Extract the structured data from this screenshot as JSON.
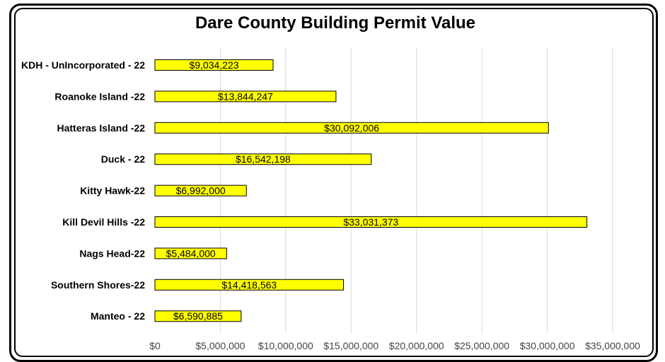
{
  "chart_data": {
    "type": "bar",
    "orientation": "horizontal",
    "title": "Dare County Building Permit Value",
    "categories": [
      "KDH - UnIncorporated - 22",
      "Roanoke Island -22",
      "Hatteras Island -22",
      "Duck - 22",
      "Kitty Hawk-22",
      "Kill Devil Hills -22",
      "Nags Head-22",
      "Southern Shores-22",
      "Manteo - 22"
    ],
    "values": [
      9034223,
      13844247,
      30092006,
      16542198,
      6992000,
      33031373,
      5484000,
      14418563,
      6590885
    ],
    "data_labels": [
      "$9,034,223",
      "$13,844,247",
      "$30,092,006",
      "$16,542,198",
      "$6,992,000",
      "$33,031,373",
      "$5,484,000",
      "$14,418,563",
      "$6,590,885"
    ],
    "xlim": [
      0,
      35000000
    ],
    "x_ticks": [
      0,
      5000000,
      10000000,
      15000000,
      20000000,
      25000000,
      30000000,
      35000000
    ],
    "x_tick_labels": [
      "$0",
      "$5,000,000",
      "$10,000,000",
      "$15,000,000",
      "$20,000,000",
      "$25,000,000",
      "$30,000,000",
      "$35,000,000"
    ],
    "xlabel": "",
    "ylabel": "",
    "grid": "vertical",
    "legend": "none",
    "bar_color": "#ffff00",
    "bar_border_color": "#000000",
    "grid_color": "#d9d9d9"
  }
}
